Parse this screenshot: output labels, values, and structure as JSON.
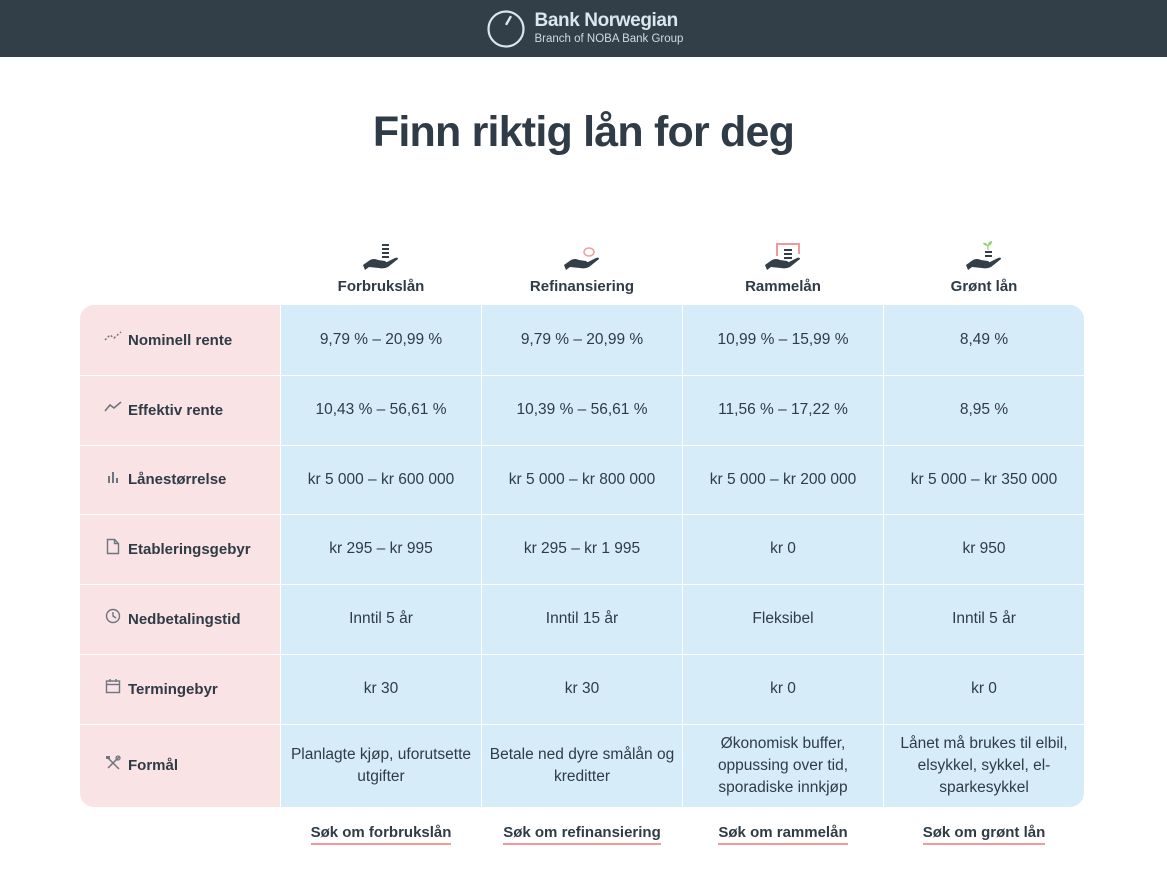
{
  "header": {
    "brand": "Bank Norwegian",
    "sub": "Branch of NOBA Bank Group",
    "logo_icon": "dial-logo-icon"
  },
  "title": "Finn riktig lån for deg",
  "products": [
    {
      "name": "Forbrukslån",
      "icon": "hand-coins-icon",
      "cta": "Søk om forbrukslån"
    },
    {
      "name": "Refinansiering",
      "icon": "hand-refinance-icon",
      "cta": "Søk om refinansiering"
    },
    {
      "name": "Rammelån",
      "icon": "hand-frame-icon",
      "cta": "Søk om rammelån"
    },
    {
      "name": "Grønt lån",
      "icon": "hand-plant-icon",
      "cta": "Søk om grønt lån"
    }
  ],
  "rows": [
    {
      "label": "Nominell rente",
      "icon": "trend-dotted-icon",
      "values": [
        "9,79 % – 20,99 %",
        "9,79 % – 20,99 %",
        "10,99 % – 15,99 %",
        "8,49 %"
      ]
    },
    {
      "label": "Effektiv rente",
      "icon": "trend-line-icon",
      "values": [
        "10,43 % – 56,61 %",
        "10,39 % – 56,61 %",
        "11,56 % – 17,22 %",
        "8,95 %"
      ]
    },
    {
      "label": "Lånestørrelse",
      "icon": "bar-chart-icon",
      "values": [
        "kr 5 000 – kr 600 000",
        "kr 5 000 – kr 800 000",
        "kr 5 000 – kr 200 000",
        "kr 5 000 – kr 350 000"
      ]
    },
    {
      "label": "Etableringsgebyr",
      "icon": "document-icon",
      "values": [
        "kr 295 – kr 995",
        "kr 295 – kr 1 995",
        "kr 0",
        "kr 950"
      ]
    },
    {
      "label": "Nedbetalingstid",
      "icon": "clock-icon",
      "values": [
        "Inntil 5 år",
        "Inntil 15 år",
        "Fleksibel",
        "Inntil 5 år"
      ]
    },
    {
      "label": "Termingebyr",
      "icon": "calendar-icon",
      "values": [
        "kr 30",
        "kr 30",
        "kr 0",
        "kr 0"
      ]
    },
    {
      "label": "Formål",
      "icon": "tools-icon",
      "values": [
        "Planlagte kjøp, uforutsette utgifter",
        "Betale ned dyre smålån og kreditter",
        "Økonomisk buffer, oppussing over tid, sporadiske innkjøp",
        "Lånet må brukes til elbil, elsykkel, sykkel, el-sparkesykkel"
      ]
    }
  ],
  "colors": {
    "header_bg": "#323e48",
    "label_bg": "#fae3e4",
    "value_bg": "#d6ecf8",
    "cta_underline": "#ef9b9b",
    "text": "#2f3b46"
  }
}
